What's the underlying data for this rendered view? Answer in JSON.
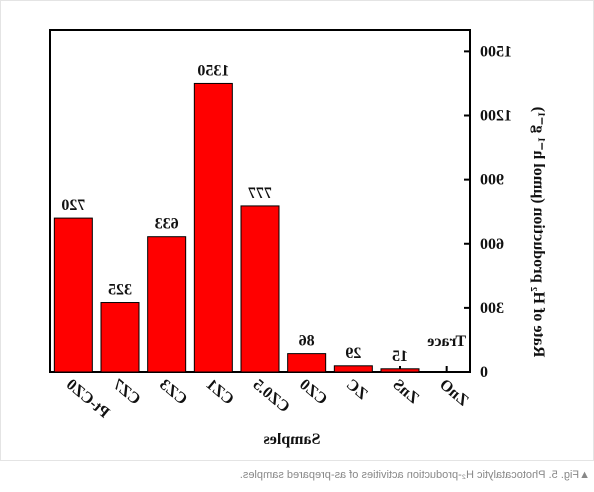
{
  "chart_data": {
    "type": "bar",
    "categories": [
      "ZnO",
      "ZnS",
      "ZC",
      "CZ0",
      "CZ0.5",
      "CZ1",
      "CZ3",
      "CZ7",
      "Pt-CZ0"
    ],
    "values": [
      null,
      15,
      29,
      86,
      777,
      1350,
      633,
      325,
      720
    ],
    "value_labels": [
      "Trace",
      "15",
      "29",
      "86",
      "777",
      "1350",
      "633",
      "325",
      "720"
    ],
    "color": "#ff0000",
    "ylim": [
      0,
      1600
    ],
    "yticks": [
      0,
      300,
      600,
      900,
      1200,
      1500
    ],
    "xlabel": "Samples",
    "ylabel": "Rate of H₂ production (μmol h⁻¹ g⁻¹)",
    "caption": "▲Fig. 5. Photocatalytic H₂-production activities of as-prepared samples."
  }
}
